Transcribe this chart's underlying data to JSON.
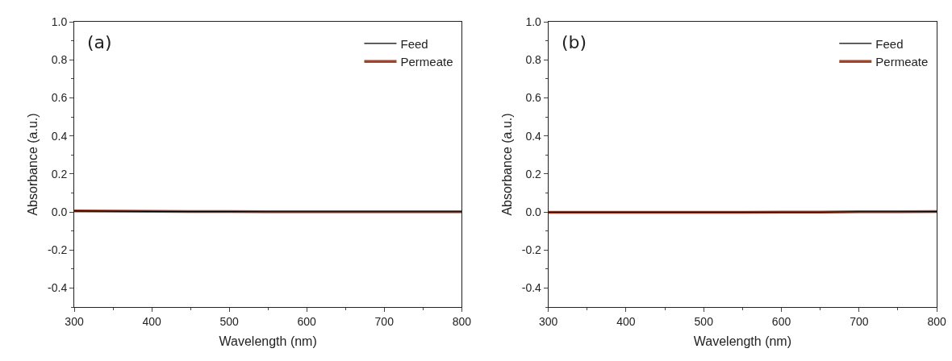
{
  "chart_data": [
    {
      "type": "line",
      "annotations": [
        "(a)"
      ],
      "xlabel": "Wavelength (nm)",
      "ylabel": "Absorbance (a.u.)",
      "x": [
        300,
        350,
        400,
        450,
        500,
        550,
        600,
        650,
        700,
        750,
        800
      ],
      "series": [
        {
          "name": "Permeate",
          "color": "#a0442c",
          "values": [
            0.005,
            0.004,
            0.003,
            0.002,
            0.002,
            0.001,
            0.001,
            0.001,
            0.001,
            0.001,
            0.001
          ]
        },
        {
          "name": "Feed",
          "color": "#000000",
          "values": [
            0.005,
            0.004,
            0.003,
            0.002,
            0.002,
            0.001,
            0.001,
            0.001,
            0.001,
            0.001,
            0.001
          ]
        }
      ],
      "xlim": [
        300,
        800
      ],
      "ylim": [
        -0.5,
        1.0
      ],
      "xticks": [
        300,
        400,
        500,
        600,
        700,
        800
      ],
      "yticks": [
        {
          "value": -0.4,
          "label": "-0.4"
        },
        {
          "value": -0.2,
          "label": "-0.2"
        },
        {
          "value": 0,
          "label": "0.0"
        },
        {
          "value": 0.2,
          "label": "0.2"
        },
        {
          "value": 0.4,
          "label": "0.4"
        },
        {
          "value": 0.6,
          "label": "0.6"
        },
        {
          "value": 0.8,
          "label": "0.8"
        },
        {
          "value": 1.0,
          "label": "1.0"
        }
      ],
      "legend": "top right",
      "line_style": "solid",
      "marker": "none"
    },
    {
      "type": "line",
      "annotations": [
        "(b)"
      ],
      "xlabel": "Wavelength (nm)",
      "ylabel": "Absorbance (a.u.)",
      "x": [
        300,
        350,
        400,
        450,
        500,
        550,
        600,
        650,
        700,
        750,
        800
      ],
      "series": [
        {
          "name": "Permeate",
          "color": "#a0442c",
          "values": [
            -0.002,
            -0.002,
            -0.002,
            -0.002,
            -0.002,
            -0.002,
            -0.001,
            -0.001,
            0.001,
            0.001,
            0.002
          ]
        },
        {
          "name": "Feed",
          "color": "#000000",
          "values": [
            -0.002,
            -0.002,
            -0.002,
            -0.002,
            -0.002,
            -0.002,
            -0.001,
            -0.001,
            0.001,
            0.001,
            0.002
          ]
        }
      ],
      "xlim": [
        300,
        800
      ],
      "ylim": [
        -0.5,
        1.0
      ],
      "xticks": [
        300,
        400,
        500,
        600,
        700,
        800
      ],
      "yticks": [
        {
          "value": -0.4,
          "label": "-0.4"
        },
        {
          "value": -0.2,
          "label": "-0.2"
        },
        {
          "value": 0,
          "label": "0.0"
        },
        {
          "value": 0.2,
          "label": "0.2"
        },
        {
          "value": 0.4,
          "label": "0.4"
        },
        {
          "value": 0.6,
          "label": "0.6"
        },
        {
          "value": 0.8,
          "label": "0.8"
        },
        {
          "value": 1.0,
          "label": "1.0"
        }
      ],
      "legend": "top right",
      "line_style": "solid",
      "marker": "none"
    }
  ]
}
